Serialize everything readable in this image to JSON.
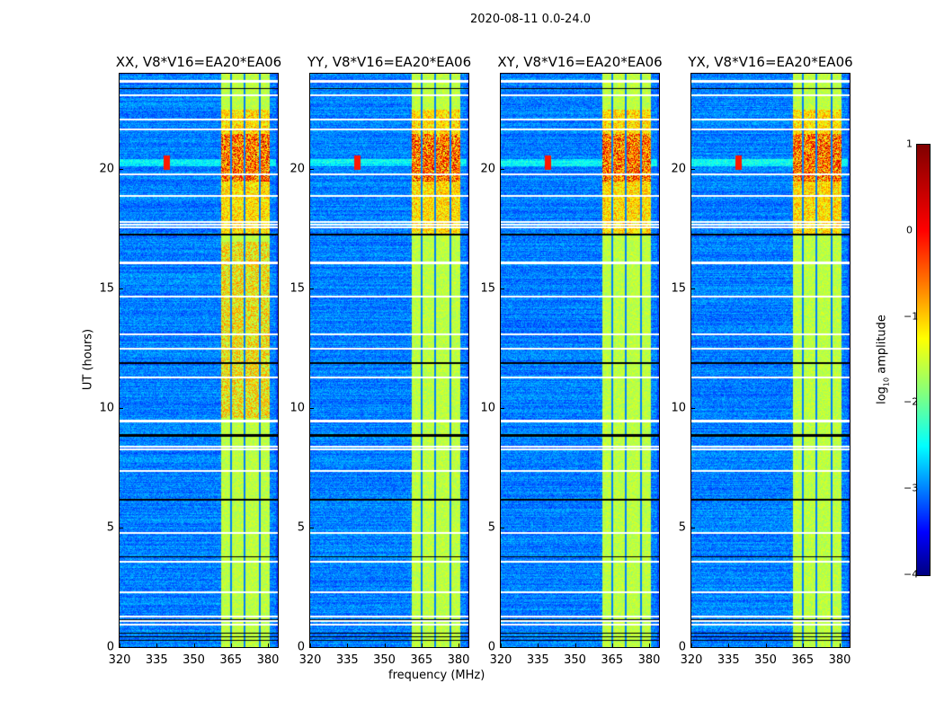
{
  "suptitle": "2020-08-11 0.0-24.0",
  "chart_data": {
    "type": "heatmap",
    "xlabel": "frequency (MHz)",
    "ylabel": "UT (hours)",
    "xlim": [
      320,
      384
    ],
    "ylim": [
      0,
      24
    ],
    "xticks": [
      "320",
      "335",
      "350",
      "365",
      "380"
    ],
    "xtick_values": [
      320,
      335,
      350,
      365,
      380
    ],
    "yticks": [
      "0",
      "5",
      "10",
      "15",
      "20"
    ],
    "ytick_values": [
      0,
      5,
      10,
      15,
      20
    ],
    "colormap": "jet",
    "panels": [
      {
        "title": "XX, V8*V16=EA20*EA06"
      },
      {
        "title": "YY, V8*V16=EA20*EA06"
      },
      {
        "title": "XY, V8*V16=EA20*EA06"
      },
      {
        "title": "YX, V8*V16=EA20*EA06"
      }
    ],
    "rfi_band_mhz": [
      361,
      380
    ],
    "colorbar": {
      "label_prefix": "log",
      "label_sub": "10",
      "label_suffix": " amplitude",
      "range": [
        -4,
        1
      ],
      "ticks": [
        "1",
        "0",
        "−1",
        "−2",
        "−3",
        "−4"
      ],
      "tick_values": [
        1,
        0,
        -1,
        -2,
        -3,
        -4
      ]
    }
  }
}
